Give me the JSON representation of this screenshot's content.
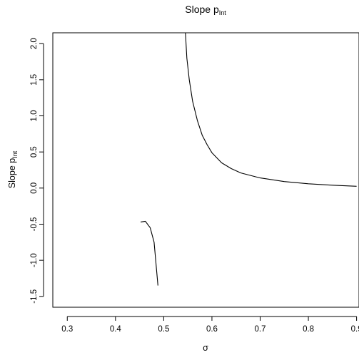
{
  "chart_data": {
    "type": "line",
    "title": "Slope p",
    "title_sub": "Int",
    "xlabel": "σ",
    "ylabel": "Slope p",
    "ylabel_sub": "Int",
    "xlim": [
      0.27,
      0.905
    ],
    "ylim": [
      -1.65,
      2.15
    ],
    "x_ticks": [
      0.3,
      0.4,
      0.5,
      0.6,
      0.7,
      0.8,
      0.9
    ],
    "x_tick_labels": [
      "0.3",
      "0.4",
      "0.5",
      "0.6",
      "0.7",
      "0.8",
      "0.9"
    ],
    "y_ticks": [
      -1.5,
      -1.0,
      -0.5,
      0.0,
      0.5,
      1.0,
      1.5,
      2.0
    ],
    "y_tick_labels": [
      "-1.5",
      "-1.0",
      "-0.5",
      "0.0",
      "0.5",
      "1.0",
      "1.5",
      "2.0"
    ],
    "line_color": "#000000",
    "series": [
      {
        "points": [
          [
            0.452,
            -0.47
          ],
          [
            0.462,
            -0.46
          ],
          [
            0.472,
            -0.55
          ],
          [
            0.48,
            -0.75
          ],
          [
            0.484,
            -1.05
          ],
          [
            0.488,
            -1.35
          ]
        ]
      },
      {
        "points": [
          [
            0.545,
            2.15
          ],
          [
            0.548,
            1.8
          ],
          [
            0.553,
            1.5
          ],
          [
            0.56,
            1.2
          ],
          [
            0.57,
            0.93
          ],
          [
            0.58,
            0.73
          ],
          [
            0.59,
            0.6
          ],
          [
            0.6,
            0.49
          ],
          [
            0.62,
            0.35
          ],
          [
            0.64,
            0.27
          ],
          [
            0.66,
            0.21
          ],
          [
            0.7,
            0.14
          ],
          [
            0.75,
            0.09
          ],
          [
            0.8,
            0.06
          ],
          [
            0.85,
            0.04
          ],
          [
            0.9,
            0.025
          ]
        ]
      }
    ]
  }
}
